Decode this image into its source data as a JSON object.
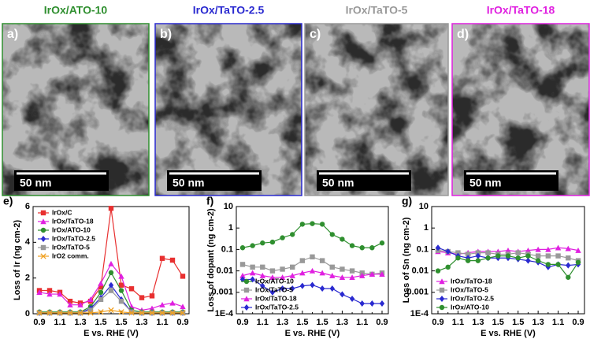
{
  "panels": [
    {
      "label": "a)",
      "title": "IrOx/ATO-10",
      "color": "#2f8f2f",
      "scale_bar": "50 nm"
    },
    {
      "label": "b)",
      "title": "IrOx/TaTO-2.5",
      "color": "#2a2ad0",
      "scale_bar": "50 nm"
    },
    {
      "label": "c)",
      "title": "IrOx/TaTO-5",
      "color": "#9a9a9a",
      "scale_bar": "50 nm"
    },
    {
      "label": "d)",
      "title": "IrOx/TaTO-18",
      "color": "#e020e0",
      "scale_bar": "50 nm"
    }
  ],
  "chart_data": [
    {
      "type": "line",
      "label": "e)",
      "ylabel": "Loss of Ir (ng cm-2)",
      "xlabel": "E vs. RHE (V)",
      "categories": [
        "0.9",
        null,
        "1.1",
        null,
        "1.3",
        null,
        "1.5",
        null,
        "1.5",
        null,
        "1.3",
        null,
        "1.1",
        null,
        "0.9"
      ],
      "ylim": [
        0,
        6
      ],
      "yticks": [
        0,
        2,
        4,
        6
      ],
      "log": false,
      "legend": "upper left",
      "series": [
        {
          "name": "IrOx/C",
          "color": "#e83030",
          "marker": "square",
          "values": [
            1.3,
            1.3,
            1.2,
            0.7,
            0.6,
            0.7,
            1.5,
            5.9,
            1.6,
            1.4,
            0.9,
            1.0,
            3.1,
            3.0,
            2.1
          ]
        },
        {
          "name": "IrOx/TaTO-18",
          "color": "#e020e0",
          "marker": "triangle",
          "values": [
            1.2,
            1.1,
            1.1,
            0.5,
            0.5,
            0.8,
            1.7,
            2.8,
            2.1,
            0.4,
            0.2,
            0.3,
            0.5,
            0.6,
            0.4
          ]
        },
        {
          "name": "IrOx/ATO-10",
          "color": "#2f8f2f",
          "marker": "circle",
          "values": [
            0.1,
            0.1,
            0.1,
            0.1,
            0.1,
            0.4,
            1.2,
            2.3,
            1.3,
            0.2,
            0.1,
            0.1,
            0.1,
            0.1,
            0.1
          ]
        },
        {
          "name": "IrOx/TaTO-2.5",
          "color": "#2a2ad0",
          "marker": "diamond",
          "values": [
            0.05,
            0.05,
            0.05,
            0.05,
            0.05,
            0.3,
            0.9,
            1.6,
            0.8,
            0.1,
            0.05,
            0.05,
            0.05,
            0.05,
            0.05
          ]
        },
        {
          "name": "IrOx/TaTO-5",
          "color": "#999999",
          "marker": "square",
          "values": [
            0.05,
            0.05,
            0.05,
            0.05,
            0.05,
            0.2,
            0.8,
            1.3,
            0.7,
            0.1,
            0.05,
            0.05,
            0.05,
            0.05,
            0.05
          ]
        },
        {
          "name": "IrO2 comm.",
          "color": "#f0a020",
          "marker": "cross",
          "values": [
            0.05,
            0.05,
            0.05,
            0.05,
            0.05,
            0.05,
            0.1,
            0.2,
            0.1,
            0.05,
            0.05,
            0.05,
            0.05,
            0.05,
            0.05
          ]
        }
      ]
    },
    {
      "type": "line",
      "label": "f)",
      "ylabel": "Loss of dopant (ng cm-2)",
      "xlabel": "E vs. RHE (V)",
      "categories": [
        "0.9",
        null,
        "1.1",
        null,
        "1.3",
        null,
        "1.5",
        null,
        "1.5",
        null,
        "1.3",
        null,
        "1.1",
        null,
        "0.9"
      ],
      "ylim": [
        0.0001,
        10
      ],
      "yticks": [
        {
          "value": 0.0001,
          "label": "1E-4"
        },
        0.001,
        0.01,
        0.1,
        1,
        10
      ],
      "log": true,
      "legend": "lower left",
      "series": [
        {
          "name": "IrOx/ATO-10",
          "color": "#2f8f2f",
          "marker": "circle",
          "values": [
            0.12,
            0.15,
            0.2,
            0.22,
            0.35,
            0.5,
            1.5,
            1.6,
            1.5,
            0.5,
            0.3,
            0.15,
            0.12,
            0.12,
            0.2
          ]
        },
        {
          "name": "IrOx/TaTO-5",
          "color": "#999999",
          "marker": "square",
          "values": [
            0.02,
            0.015,
            0.015,
            0.01,
            0.012,
            0.015,
            0.03,
            0.045,
            0.03,
            0.015,
            0.012,
            0.01,
            0.008,
            0.007,
            0.008
          ]
        },
        {
          "name": "IrOx/TaTO-18",
          "color": "#e020e0",
          "marker": "triangle",
          "values": [
            0.006,
            0.008,
            0.006,
            0.005,
            0.005,
            0.006,
            0.008,
            0.01,
            0.008,
            0.006,
            0.005,
            0.005,
            0.006,
            0.007,
            0.007
          ]
        },
        {
          "name": "IrOx/TaTO-2.5",
          "color": "#2a2ad0",
          "marker": "diamond",
          "values": [
            0.004,
            0.004,
            0.002,
            0.001,
            0.0015,
            0.0015,
            0.002,
            0.0022,
            0.0015,
            0.0015,
            0.0008,
            0.0005,
            0.0003,
            0.0003,
            0.0003
          ]
        }
      ]
    },
    {
      "type": "line",
      "label": "g)",
      "ylabel": "Loss of Sn (ng cm-2)",
      "xlabel": "E vs. RHE (V)",
      "categories": [
        "0.9",
        null,
        "1.1",
        null,
        "1.3",
        null,
        "1.5",
        null,
        "1.5",
        null,
        "1.3",
        null,
        "1.1",
        null,
        "0.9"
      ],
      "ylim": [
        0.0001,
        10
      ],
      "yticks": [
        {
          "value": 0.0001,
          "label": "1E-4"
        },
        0.001,
        0.01,
        0.1,
        1,
        10
      ],
      "log": true,
      "legend": "lower left",
      "series": [
        {
          "name": "IrOx/TaTO-18",
          "color": "#e020e0",
          "marker": "triangle",
          "values": [
            0.08,
            0.07,
            0.06,
            0.07,
            0.08,
            0.08,
            0.08,
            0.09,
            0.08,
            0.09,
            0.1,
            0.1,
            0.12,
            0.11,
            0.09
          ]
        },
        {
          "name": "IrOx/TaTO-5",
          "color": "#999999",
          "marker": "square",
          "values": [
            0.09,
            0.08,
            0.07,
            0.06,
            0.07,
            0.07,
            0.06,
            0.06,
            0.07,
            0.06,
            0.05,
            0.05,
            0.05,
            0.04,
            0.03
          ]
        },
        {
          "name": "IrOx/TaTO-2.5",
          "color": "#2a2ad0",
          "marker": "diamond",
          "values": [
            0.12,
            0.08,
            0.05,
            0.04,
            0.05,
            0.04,
            0.04,
            0.04,
            0.035,
            0.03,
            0.025,
            0.015,
            0.02,
            0.018,
            0.02
          ]
        },
        {
          "name": "IrOx/ATO-10",
          "color": "#2f8f2f",
          "marker": "circle",
          "values": [
            0.01,
            0.015,
            0.04,
            0.03,
            0.03,
            0.04,
            0.05,
            0.05,
            0.04,
            0.05,
            0.03,
            0.02,
            0.02,
            0.005,
            0.025
          ]
        }
      ]
    }
  ]
}
